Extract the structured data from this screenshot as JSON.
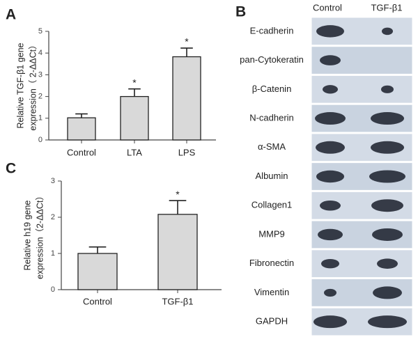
{
  "chart_data": [
    {
      "type": "bar",
      "panel_label": "A",
      "y_label": [
        "Relative TGF-β1 gene",
        "expression（ 2-ΔΔCt）"
      ],
      "categories": [
        "Control",
        "LTA",
        "LPS"
      ],
      "values": [
        1.02,
        2.0,
        3.83
      ],
      "errors": [
        0.18,
        0.35,
        0.4
      ],
      "significance": [
        null,
        "*",
        "*"
      ],
      "color": "#d9d9d9",
      "ylim": [
        0,
        5
      ],
      "yticks": [
        0,
        1,
        2,
        3,
        4,
        5
      ]
    },
    {
      "type": "bar",
      "panel_label": "C",
      "y_label": [
        "Relative h19  gene",
        "expression（2-ΔΔCt）"
      ],
      "categories": [
        "Control",
        "TGF-β1"
      ],
      "values": [
        1.0,
        2.08
      ],
      "errors": [
        0.18,
        0.38
      ],
      "significance": [
        null,
        "*"
      ],
      "color": "#d9d9d9",
      "ylim": [
        0,
        3
      ],
      "yticks": [
        0,
        1,
        2,
        3
      ]
    }
  ],
  "blot": {
    "panel_label": "B",
    "columns": [
      "Control",
      "TGF-β1"
    ],
    "rows": [
      "E-cadherin",
      "pan-Cytokeratin",
      "β-Catenin",
      "N-cadherin",
      "α-SMA",
      "Albumin",
      "Collagen1",
      "MMP9",
      "Fibronectin",
      "Vimentin",
      "GAPDH"
    ]
  }
}
